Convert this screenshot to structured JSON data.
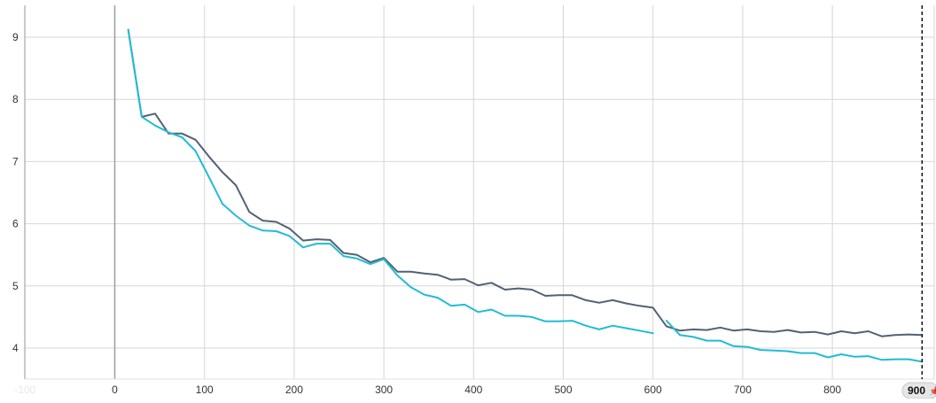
{
  "chart_data": {
    "type": "line",
    "title": "",
    "xlabel": "",
    "ylabel": "",
    "xlim": [
      -100,
      900
    ],
    "ylim": [
      3.5,
      9.5
    ],
    "x_ticks": [
      0,
      100,
      200,
      300,
      400,
      500,
      600,
      700,
      800
    ],
    "x_tick_labels": [
      "0",
      "100",
      "200",
      "300",
      "400",
      "500",
      "600",
      "700",
      "800"
    ],
    "ghost_tick_label": "-100",
    "y_ticks": [
      4,
      5,
      6,
      7,
      8,
      9
    ],
    "y_tick_labels": [
      "4",
      "5",
      "6",
      "7",
      "8",
      "9"
    ],
    "grid": true,
    "legend": "none",
    "cursor": {
      "x": 900,
      "label": "900",
      "pin_glyph": "📌"
    },
    "series": [
      {
        "color": "#536175",
        "x": [
          15,
          30,
          45,
          60,
          75,
          90,
          105,
          120,
          135,
          150,
          165,
          180,
          195,
          210,
          225,
          240,
          255,
          270,
          285,
          300,
          315,
          330,
          345,
          360,
          375,
          390,
          405,
          420,
          435,
          450,
          465,
          480,
          495,
          510,
          525,
          540,
          555,
          570,
          585,
          600,
          615,
          630,
          645,
          660,
          675,
          690,
          705,
          720,
          735,
          750,
          765,
          780,
          795,
          810,
          825,
          840,
          855,
          870,
          885,
          900
        ],
        "y": [
          9.12,
          7.72,
          7.77,
          7.45,
          7.45,
          7.35,
          7.08,
          6.83,
          6.62,
          6.19,
          6.05,
          6.03,
          5.92,
          5.73,
          5.75,
          5.74,
          5.53,
          5.5,
          5.38,
          5.45,
          5.23,
          5.23,
          5.2,
          5.18,
          5.1,
          5.11,
          5.01,
          5.05,
          4.94,
          4.96,
          4.94,
          4.84,
          4.85,
          4.85,
          4.77,
          4.73,
          4.77,
          4.72,
          4.68,
          4.65,
          4.35,
          4.28,
          4.3,
          4.29,
          4.33,
          4.28,
          4.3,
          4.27,
          4.26,
          4.29,
          4.25,
          4.26,
          4.22,
          4.27,
          4.24,
          4.27,
          4.19,
          4.21,
          4.22,
          4.21
        ]
      },
      {
        "color": "#22bcd4",
        "x": [
          15,
          30,
          45,
          60,
          75,
          90,
          105,
          120,
          135,
          150,
          165,
          180,
          195,
          210,
          225,
          240,
          255,
          270,
          285,
          300,
          315,
          330,
          345,
          360,
          375,
          390,
          405,
          420,
          435,
          450,
          465,
          480,
          495,
          510,
          525,
          540,
          555,
          570,
          585,
          600,
          615,
          630,
          645,
          660,
          675,
          690,
          705,
          720,
          735,
          750,
          765,
          780,
          795,
          810,
          825,
          840,
          855,
          870,
          885,
          900
        ],
        "y": [
          9.12,
          7.72,
          7.58,
          7.47,
          7.39,
          7.17,
          6.75,
          6.32,
          6.13,
          5.97,
          5.89,
          5.88,
          5.8,
          5.62,
          5.68,
          5.68,
          5.48,
          5.44,
          5.35,
          5.43,
          5.17,
          4.98,
          4.86,
          4.81,
          4.68,
          4.7,
          4.58,
          4.62,
          4.52,
          4.52,
          4.5,
          4.43,
          4.43,
          4.44,
          4.36,
          4.3,
          4.36,
          4.32,
          4.28,
          4.24,
          null,
          4.21,
          4.18,
          4.12,
          4.12,
          4.03,
          4.02,
          3.97,
          3.96,
          3.95,
          3.92,
          3.92,
          3.85,
          3.9,
          3.86,
          3.87,
          3.81,
          3.82,
          3.82,
          3.78
        ]
      },
      {
        "color": "#22bcd4",
        "x": [
          615,
          630
        ],
        "y": [
          4.44,
          4.21
        ]
      }
    ]
  }
}
